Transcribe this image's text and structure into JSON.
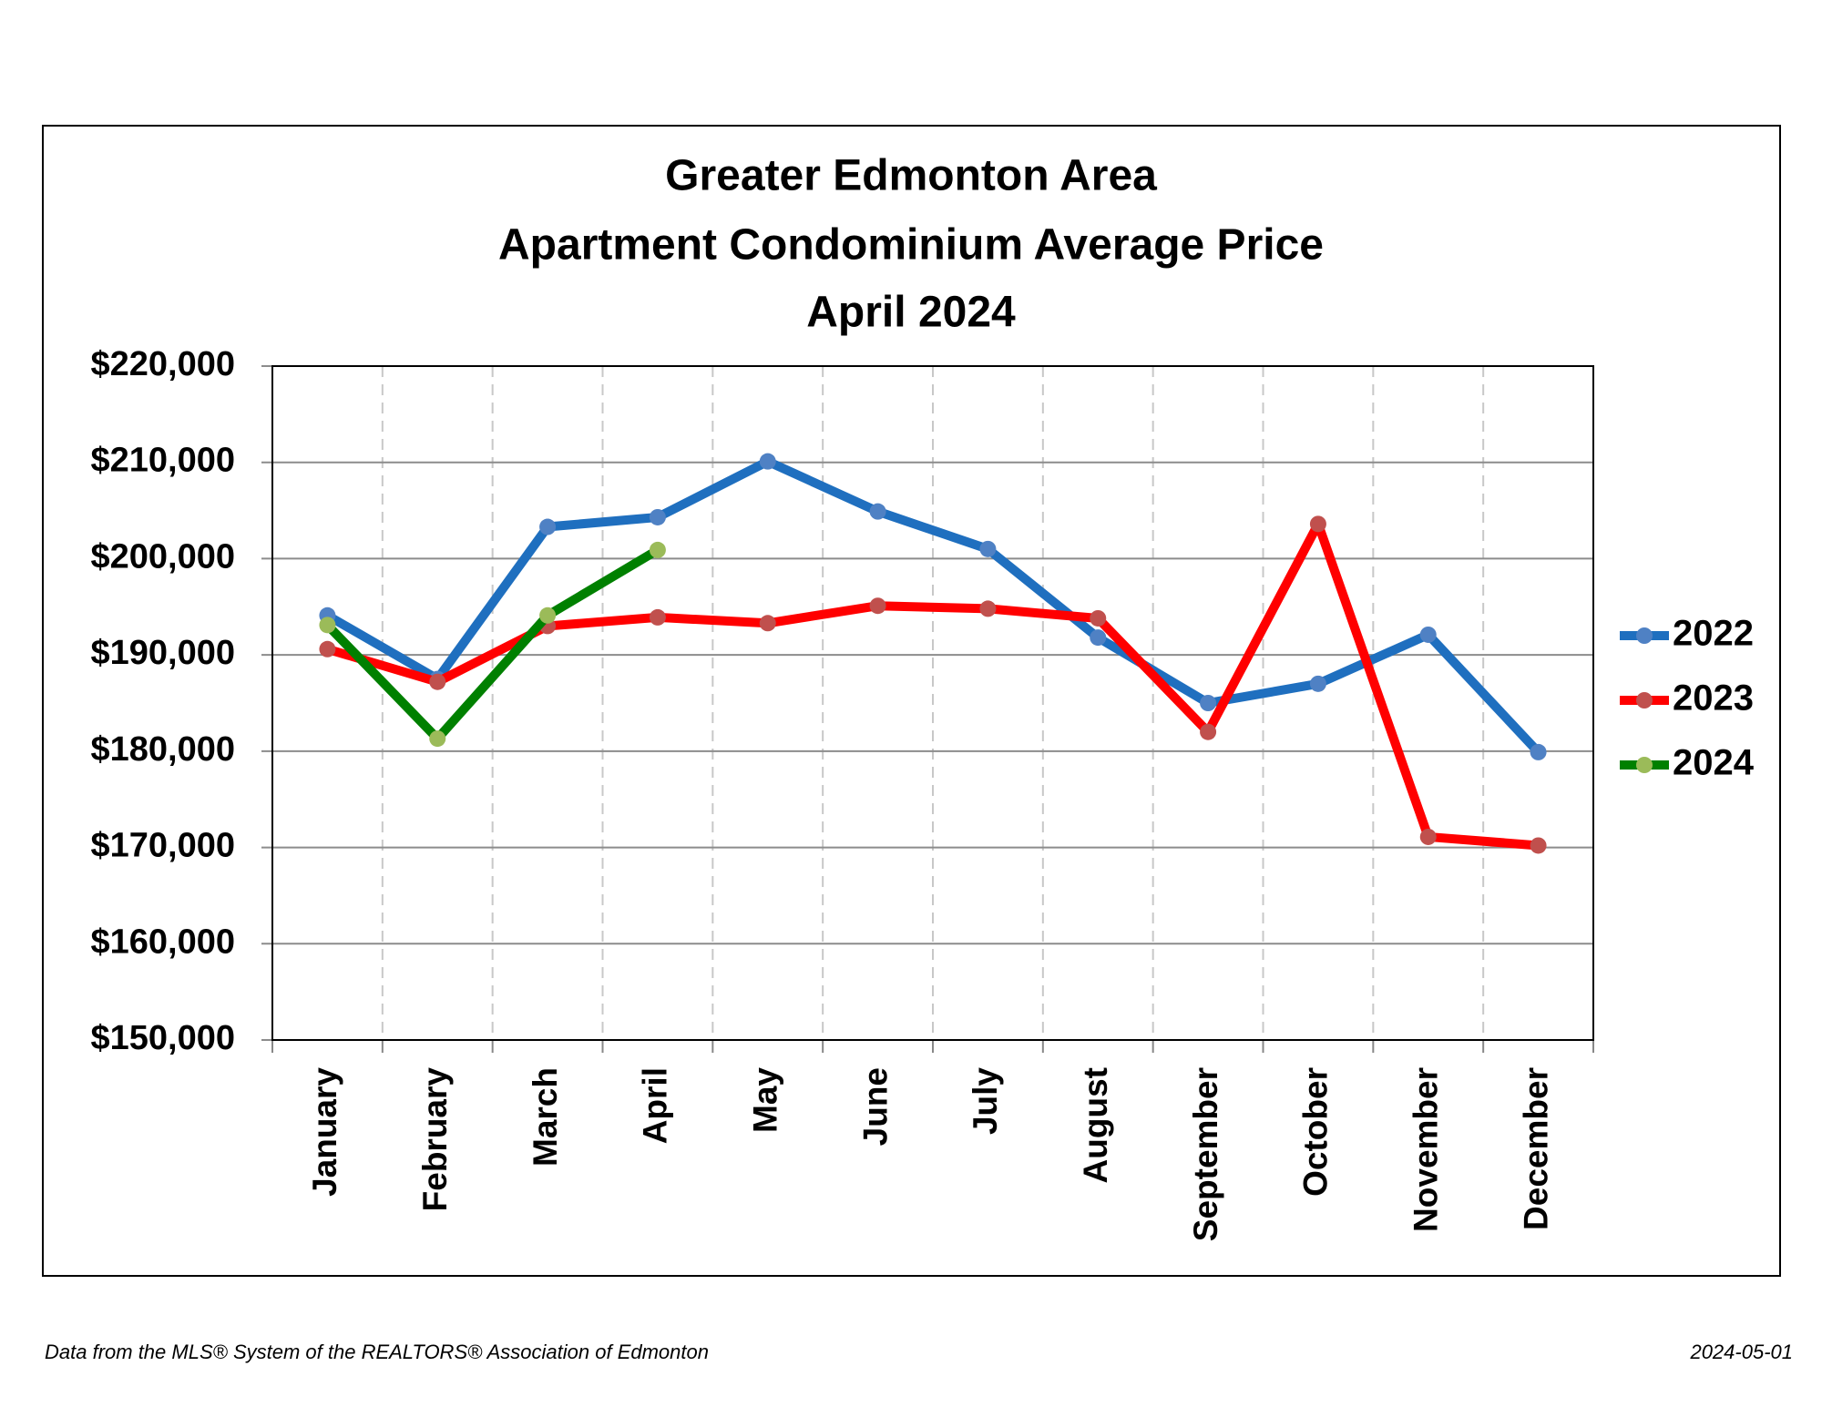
{
  "chart_data": {
    "type": "line",
    "title": [
      "Greater Edmonton Area",
      "Apartment Condominium Average Price",
      "April 2024"
    ],
    "categories": [
      "January",
      "February",
      "March",
      "April",
      "May",
      "June",
      "July",
      "August",
      "September",
      "October",
      "November",
      "December"
    ],
    "series": [
      {
        "name": "2022",
        "color": "#1f6fbf",
        "marker_color": "#4f81c4",
        "values": [
          194100,
          187500,
          203300,
          204300,
          210100,
          204900,
          201000,
          191800,
          185000,
          187000,
          192100,
          179900
        ]
      },
      {
        "name": "2023",
        "color": "#ff0000",
        "marker_color": "#c0504d",
        "values": [
          190600,
          187200,
          193000,
          193900,
          193300,
          195100,
          194800,
          193800,
          182000,
          203600,
          171100,
          170200
        ]
      },
      {
        "name": "2024",
        "color": "#008000",
        "marker_color": "#9bbb59",
        "values": [
          193100,
          181300,
          194100,
          200900,
          null,
          null,
          null,
          null,
          null,
          null,
          null,
          null
        ]
      }
    ],
    "ylim": [
      150000,
      220000
    ],
    "yticks": [
      {
        "value": 150000,
        "label": "$150,000"
      },
      {
        "value": 160000,
        "label": "$160,000"
      },
      {
        "value": 170000,
        "label": "$170,000"
      },
      {
        "value": 180000,
        "label": "$180,000"
      },
      {
        "value": 190000,
        "label": "$190,000"
      },
      {
        "value": 200000,
        "label": "$200,000"
      },
      {
        "value": 210000,
        "label": "$210,000"
      },
      {
        "value": 220000,
        "label": "$220,000"
      }
    ],
    "grid": true,
    "legend": "right"
  },
  "footer": {
    "source": "Data from the MLS® System of the REALTORS® Association of Edmonton",
    "date": "2024-05-01"
  }
}
